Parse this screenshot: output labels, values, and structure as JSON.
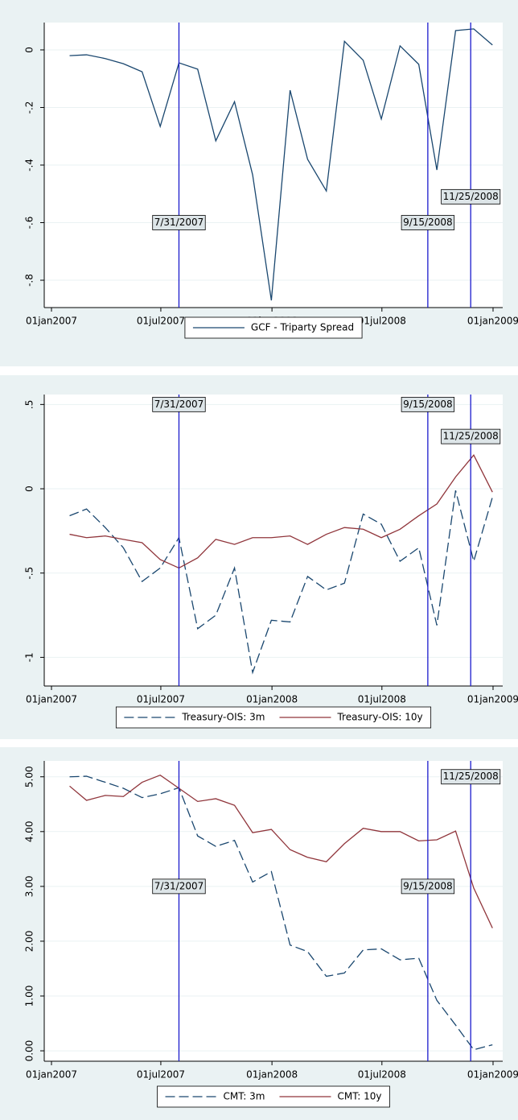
{
  "chart_data": [
    {
      "type": "line",
      "x": [
        "2007-01-31",
        "2007-02-28",
        "2007-03-31",
        "2007-04-30",
        "2007-05-31",
        "2007-06-30",
        "2007-07-31",
        "2007-08-31",
        "2007-09-30",
        "2007-10-31",
        "2007-11-30",
        "2007-12-31",
        "2008-01-31",
        "2008-02-29",
        "2008-03-31",
        "2008-04-30",
        "2008-05-31",
        "2008-06-30",
        "2008-07-31",
        "2008-08-31",
        "2008-09-30",
        "2008-10-31",
        "2008-11-30",
        "2008-12-31"
      ],
      "series": [
        {
          "name": "GCF - Triparty Spread",
          "color": "#1a476f",
          "dash": "solid",
          "values": [
            -0.02,
            -0.017,
            -0.03,
            -0.048,
            -0.076,
            -0.266,
            -0.045,
            -0.067,
            -0.316,
            -0.18,
            -0.434,
            -0.87,
            -0.14,
            -0.38,
            -0.49,
            0.03,
            -0.036,
            -0.24,
            0.014,
            -0.05,
            -0.417,
            0.067,
            0.073,
            0.017
          ]
        }
      ],
      "xlim": [
        "2006-12-20",
        "2009-01-17"
      ],
      "xticks": [
        {
          "value": "2007-01-01",
          "label": "01jan2007"
        },
        {
          "value": "2007-07-01",
          "label": "01jul2007"
        },
        {
          "value": "2008-01-01",
          "label": "01jan2008"
        },
        {
          "value": "2008-07-01",
          "label": "01jul2008"
        },
        {
          "value": "2009-01-01",
          "label": "01jan2009"
        }
      ],
      "ylim": [
        -0.895,
        0.095
      ],
      "yticks": [
        0,
        {
          "value": -0.2,
          "label": "-.2"
        },
        {
          "value": -0.4,
          "label": "-.4"
        },
        {
          "value": -0.6,
          "label": "-.6"
        },
        {
          "value": -0.8,
          "label": "-.8"
        }
      ],
      "grid": true,
      "vline_color": "#1a1acc",
      "vlines": [
        {
          "x": "2007-07-31",
          "label": "7/31/2007",
          "label_y": -0.6
        },
        {
          "x": "2008-09-15",
          "label": "9/15/2008",
          "label_y": -0.6
        },
        {
          "x": "2008-11-25",
          "label": "11/25/2008",
          "label_y": -0.51
        }
      ],
      "legend": "bottom"
    },
    {
      "type": "line",
      "x": [
        "2007-01-31",
        "2007-02-28",
        "2007-03-31",
        "2007-04-30",
        "2007-05-31",
        "2007-06-30",
        "2007-07-31",
        "2007-08-31",
        "2007-09-30",
        "2007-10-31",
        "2007-11-30",
        "2007-12-31",
        "2008-01-31",
        "2008-02-29",
        "2008-03-31",
        "2008-04-30",
        "2008-05-31",
        "2008-06-30",
        "2008-07-31",
        "2008-08-31",
        "2008-09-30",
        "2008-10-31",
        "2008-11-30",
        "2008-12-31"
      ],
      "series": [
        {
          "name": "Treasury-OIS: 3m",
          "color": "#1a476f",
          "dash": "dash",
          "values": [
            -0.16,
            -0.12,
            -0.23,
            -0.35,
            -0.55,
            -0.47,
            -0.29,
            -0.83,
            -0.75,
            -0.47,
            -1.09,
            -0.78,
            -0.79,
            -0.52,
            -0.6,
            -0.56,
            -0.15,
            -0.21,
            -0.43,
            -0.35,
            -0.81,
            -0.01,
            -0.43,
            -0.05
          ]
        },
        {
          "name": "Treasury-OIS: 10y",
          "color": "#90353b",
          "dash": "solid",
          "values": [
            -0.27,
            -0.29,
            -0.28,
            -0.3,
            -0.32,
            -0.42,
            -0.47,
            -0.41,
            -0.3,
            -0.33,
            -0.29,
            -0.29,
            -0.28,
            -0.33,
            -0.27,
            -0.23,
            -0.24,
            -0.29,
            -0.24,
            -0.16,
            -0.09,
            0.07,
            0.2,
            -0.02
          ]
        }
      ],
      "xlim": [
        "2006-12-20",
        "2009-01-17"
      ],
      "xticks": [
        {
          "value": "2007-01-01",
          "label": "01jan2007"
        },
        {
          "value": "2007-07-01",
          "label": "01jul2007"
        },
        {
          "value": "2008-01-01",
          "label": "01jan2008"
        },
        {
          "value": "2008-07-01",
          "label": "01jul2008"
        },
        {
          "value": "2009-01-01",
          "label": "01jan2009"
        }
      ],
      "ylim": [
        -1.17,
        0.559
      ],
      "yticks": [
        {
          "value": 0.5,
          "label": ".5"
        },
        0,
        {
          "value": -0.5,
          "label": "-.5"
        },
        -1
      ],
      "grid": true,
      "vline_color": "#1a1acc",
      "vlines": [
        {
          "x": "2007-07-31",
          "label": "7/31/2007",
          "label_y": 0.5
        },
        {
          "x": "2008-09-15",
          "label": "9/15/2008",
          "label_y": 0.5
        },
        {
          "x": "2008-11-25",
          "label": "11/25/2008",
          "label_y": 0.31
        }
      ],
      "legend": "bottom"
    },
    {
      "type": "line",
      "x": [
        "2007-01-31",
        "2007-02-28",
        "2007-03-31",
        "2007-04-30",
        "2007-05-31",
        "2007-06-30",
        "2007-07-31",
        "2007-08-31",
        "2007-09-30",
        "2007-10-31",
        "2007-11-30",
        "2007-12-31",
        "2008-01-31",
        "2008-02-29",
        "2008-03-31",
        "2008-04-30",
        "2008-05-31",
        "2008-06-30",
        "2008-07-31",
        "2008-08-31",
        "2008-09-30",
        "2008-10-31",
        "2008-11-30",
        "2008-12-31"
      ],
      "series": [
        {
          "name": "CMT: 3m",
          "color": "#1a476f",
          "dash": "dash",
          "values": [
            5.0,
            5.01,
            4.9,
            4.79,
            4.62,
            4.69,
            4.8,
            3.92,
            3.73,
            3.84,
            3.08,
            3.27,
            1.93,
            1.81,
            1.36,
            1.42,
            1.84,
            1.86,
            1.66,
            1.69,
            0.92,
            0.47,
            0.02,
            0.11
          ]
        },
        {
          "name": "CMT: 10y",
          "color": "#90353b",
          "dash": "solid",
          "values": [
            4.83,
            4.57,
            4.66,
            4.64,
            4.9,
            5.03,
            4.79,
            4.55,
            4.6,
            4.48,
            3.98,
            4.04,
            3.67,
            3.53,
            3.45,
            3.78,
            4.06,
            4.0,
            4.0,
            3.83,
            3.85,
            4.01,
            2.97,
            2.24
          ]
        }
      ],
      "xlim": [
        "2006-12-20",
        "2009-01-17"
      ],
      "xticks": [
        {
          "value": "2007-01-01",
          "label": "01jan2007"
        },
        {
          "value": "2007-07-01",
          "label": "01jul2007"
        },
        {
          "value": "2008-01-01",
          "label": "01jan2008"
        },
        {
          "value": "2008-07-01",
          "label": "01jul2008"
        },
        {
          "value": "2009-01-01",
          "label": "01jan2009"
        }
      ],
      "ylim": [
        -0.19,
        5.29
      ],
      "yticks": [
        {
          "value": 5,
          "label": "5.00"
        },
        {
          "value": 4,
          "label": "4.00"
        },
        {
          "value": 3,
          "label": "3.00"
        },
        {
          "value": 2,
          "label": "2.00"
        },
        {
          "value": 1,
          "label": "1.00"
        },
        {
          "value": 0,
          "label": "0.00"
        }
      ],
      "grid": true,
      "vline_color": "#1a1acc",
      "vlines": [
        {
          "x": "2007-07-31",
          "label": "7/31/2007",
          "label_y": 3.0
        },
        {
          "x": "2008-09-15",
          "label": "9/15/2008",
          "label_y": 3.0
        },
        {
          "x": "2008-11-25",
          "label": "11/25/2008",
          "label_y": 5.0
        }
      ],
      "legend": "bottom"
    }
  ]
}
